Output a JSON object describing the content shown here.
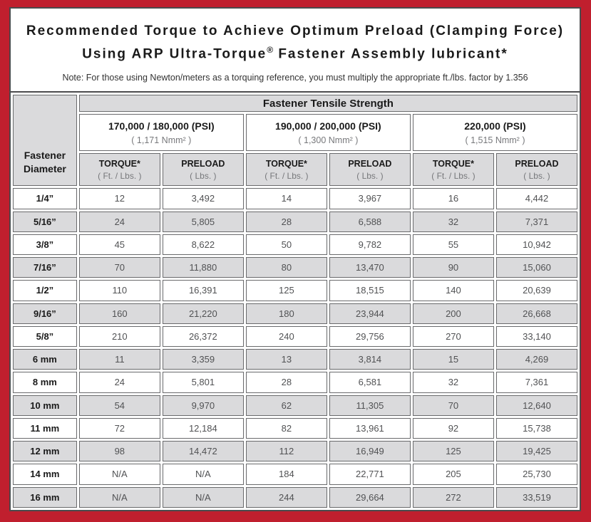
{
  "colors": {
    "frame_red": "#c01f2e",
    "panel_border": "#4b4b4d",
    "row_alt_gray": "#dadadc",
    "cell_border": "#696a6c"
  },
  "header": {
    "title_line1": "Recommended Torque to Achieve Optimum Preload (Clamping Force)",
    "title_line2_pre": "Using ARP Ultra-Torque",
    "title_line2_sup": "®",
    "title_line2_post": " Fastener Assembly lubricant*",
    "note": "Note: For those using Newton/meters as a torquing reference, you must multiply the appropriate ft./lbs. factor by 1.356"
  },
  "table": {
    "corner": {
      "line1": "Fastener",
      "line2": "Diameter"
    },
    "tensile_header": "Fastener Tensile Strength",
    "strength_groups": [
      {
        "psi": "170,000 / 180,000 (PSI)",
        "nmm": "( 1,171 Nmm² )"
      },
      {
        "psi": "190,000 / 200,000 (PSI)",
        "nmm": "( 1,300 Nmm² )"
      },
      {
        "psi": "220,000 (PSI)",
        "nmm": "( 1,515 Nmm² )"
      }
    ],
    "sub_headers": {
      "torque": "TORQUE*",
      "torque_unit": "( Ft. / Lbs. )",
      "preload": "PRELOAD",
      "preload_unit": "( Lbs. )"
    },
    "rows": [
      {
        "diameter": "1/4”",
        "values": [
          "12",
          "3,492",
          "14",
          "3,967",
          "16",
          "4,442"
        ]
      },
      {
        "diameter": "5/16”",
        "values": [
          "24",
          "5,805",
          "28",
          "6,588",
          "32",
          "7,371"
        ]
      },
      {
        "diameter": "3/8”",
        "values": [
          "45",
          "8,622",
          "50",
          "9,782",
          "55",
          "10,942"
        ]
      },
      {
        "diameter": "7/16”",
        "values": [
          "70",
          "11,880",
          "80",
          "13,470",
          "90",
          "15,060"
        ]
      },
      {
        "diameter": "1/2”",
        "values": [
          "110",
          "16,391",
          "125",
          "18,515",
          "140",
          "20,639"
        ]
      },
      {
        "diameter": "9/16”",
        "values": [
          "160",
          "21,220",
          "180",
          "23,944",
          "200",
          "26,668"
        ]
      },
      {
        "diameter": "5/8”",
        "values": [
          "210",
          "26,372",
          "240",
          "29,756",
          "270",
          "33,140"
        ]
      },
      {
        "diameter": "6 mm",
        "values": [
          "11",
          "3,359",
          "13",
          "3,814",
          "15",
          "4,269"
        ]
      },
      {
        "diameter": "8 mm",
        "values": [
          "24",
          "5,801",
          "28",
          "6,581",
          "32",
          "7,361"
        ]
      },
      {
        "diameter": "10 mm",
        "values": [
          "54",
          "9,970",
          "62",
          "11,305",
          "70",
          "12,640"
        ]
      },
      {
        "diameter": "11 mm",
        "values": [
          "72",
          "12,184",
          "82",
          "13,961",
          "92",
          "15,738"
        ]
      },
      {
        "diameter": "12 mm",
        "values": [
          "98",
          "14,472",
          "112",
          "16,949",
          "125",
          "19,425"
        ]
      },
      {
        "diameter": "14 mm",
        "values": [
          "N/A",
          "N/A",
          "184",
          "22,771",
          "205",
          "25,730"
        ]
      },
      {
        "diameter": "16 mm",
        "values": [
          "N/A",
          "N/A",
          "244",
          "29,664",
          "272",
          "33,519"
        ]
      }
    ]
  }
}
